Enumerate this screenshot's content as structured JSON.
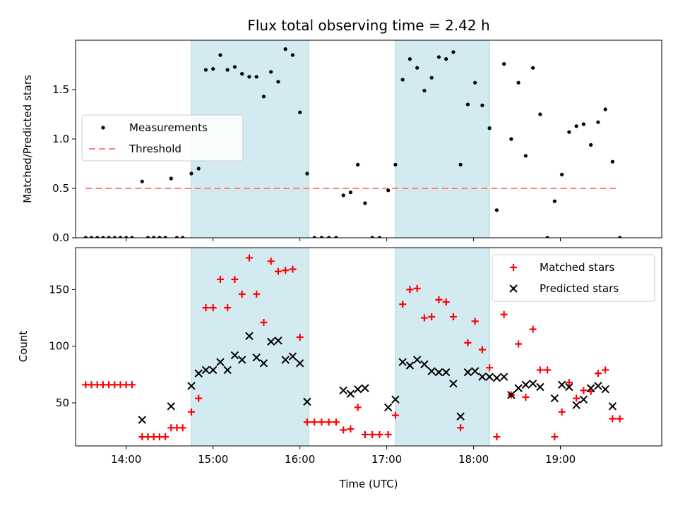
{
  "chart_data": [
    {
      "type": "scatter",
      "title": "Flux total observing time = 2.42 h",
      "xlabel": "",
      "ylabel": "Matched/Predicted stars",
      "xlim": [
        "13:25",
        "20:10"
      ],
      "ylim": [
        0,
        2.0
      ],
      "y_ticks": [
        "0.0",
        "0.5",
        "1.0",
        "1.5"
      ],
      "shaded_intervals": [
        [
          "14:45",
          "16:06"
        ],
        [
          "17:06",
          "18:11"
        ]
      ],
      "shade_color": "#d3eaf0",
      "legend_position": "center-left",
      "series": [
        {
          "name": "Measurements",
          "marker": "dot",
          "color": "#000000",
          "points": [
            [
              "13:32",
              0.0
            ],
            [
              "13:36",
              0.0
            ],
            [
              "13:40",
              0.0
            ],
            [
              "13:44",
              0.0
            ],
            [
              "13:48",
              0.0
            ],
            [
              "13:52",
              0.0
            ],
            [
              "13:56",
              0.0
            ],
            [
              "14:00",
              0.0
            ],
            [
              "14:04",
              0.0
            ],
            [
              "14:11",
              0.57
            ],
            [
              "14:15",
              0.0
            ],
            [
              "14:19",
              0.0
            ],
            [
              "14:23",
              0.0
            ],
            [
              "14:27",
              0.0
            ],
            [
              "14:31",
              0.6
            ],
            [
              "14:35",
              0.0
            ],
            [
              "14:39",
              0.0
            ],
            [
              "14:45",
              0.65
            ],
            [
              "14:50",
              0.7
            ],
            [
              "14:55",
              1.7
            ],
            [
              "15:00",
              1.71
            ],
            [
              "15:05",
              1.85
            ],
            [
              "15:10",
              1.7
            ],
            [
              "15:15",
              1.73
            ],
            [
              "15:20",
              1.66
            ],
            [
              "15:25",
              1.63
            ],
            [
              "15:30",
              1.63
            ],
            [
              "15:35",
              1.43
            ],
            [
              "15:40",
              1.68
            ],
            [
              "15:45",
              1.58
            ],
            [
              "15:50",
              1.91
            ],
            [
              "15:55",
              1.85
            ],
            [
              "16:00",
              1.27
            ],
            [
              "16:05",
              0.65
            ],
            [
              "16:10",
              0.0
            ],
            [
              "16:15",
              0.0
            ],
            [
              "16:20",
              0.0
            ],
            [
              "16:25",
              0.0
            ],
            [
              "16:30",
              0.43
            ],
            [
              "16:35",
              0.46
            ],
            [
              "16:40",
              0.74
            ],
            [
              "16:45",
              0.35
            ],
            [
              "16:50",
              0.0
            ],
            [
              "16:55",
              0.0
            ],
            [
              "17:01",
              0.48
            ],
            [
              "17:06",
              0.74
            ],
            [
              "17:11",
              1.6
            ],
            [
              "17:16",
              1.81
            ],
            [
              "17:21",
              1.72
            ],
            [
              "17:26",
              1.49
            ],
            [
              "17:31",
              1.62
            ],
            [
              "17:36",
              1.83
            ],
            [
              "17:41",
              1.81
            ],
            [
              "17:46",
              1.88
            ],
            [
              "17:51",
              0.74
            ],
            [
              "17:56",
              1.35
            ],
            [
              "18:01",
              1.57
            ],
            [
              "18:06",
              1.34
            ],
            [
              "18:11",
              1.11
            ],
            [
              "18:16",
              0.28
            ],
            [
              "18:21",
              1.76
            ],
            [
              "18:26",
              1.0
            ],
            [
              "18:31",
              1.57
            ],
            [
              "18:36",
              0.83
            ],
            [
              "18:41",
              1.72
            ],
            [
              "18:46",
              1.25
            ],
            [
              "18:51",
              0.0
            ],
            [
              "18:56",
              0.37
            ],
            [
              "19:01",
              0.64
            ],
            [
              "19:06",
              1.07
            ],
            [
              "19:11",
              1.13
            ],
            [
              "19:16",
              1.15
            ],
            [
              "19:21",
              0.94
            ],
            [
              "19:26",
              1.17
            ],
            [
              "19:31",
              1.3
            ],
            [
              "19:36",
              0.77
            ],
            [
              "19:41",
              0.0
            ]
          ]
        }
      ],
      "threshold": {
        "name": "Threshold",
        "value": 0.5,
        "from": "13:32",
        "to": "19:41",
        "color": "#ff7f7f",
        "style": "dashed"
      }
    },
    {
      "type": "scatter",
      "title": "",
      "xlabel": "Time (UTC)",
      "ylabel": "Count",
      "xlim": [
        "13:25",
        "20:10"
      ],
      "ylim": [
        12,
        187
      ],
      "x_ticks": [
        "14:00",
        "15:00",
        "16:00",
        "17:00",
        "18:00",
        "19:00"
      ],
      "y_ticks": [
        "50",
        "100",
        "150"
      ],
      "shaded_intervals": [
        [
          "14:45",
          "16:06"
        ],
        [
          "17:06",
          "18:11"
        ]
      ],
      "shade_color": "#d3eaf0",
      "legend_position": "top-right",
      "series": [
        {
          "name": "Matched stars",
          "marker": "plus",
          "color": "#ff0000",
          "points": [
            [
              "13:32",
              66
            ],
            [
              "13:36",
              66
            ],
            [
              "13:40",
              66
            ],
            [
              "13:44",
              66
            ],
            [
              "13:48",
              66
            ],
            [
              "13:52",
              66
            ],
            [
              "13:56",
              66
            ],
            [
              "14:00",
              66
            ],
            [
              "14:04",
              66
            ],
            [
              "14:11",
              20
            ],
            [
              "14:15",
              20
            ],
            [
              "14:19",
              20
            ],
            [
              "14:23",
              20
            ],
            [
              "14:27",
              20
            ],
            [
              "14:31",
              28
            ],
            [
              "14:35",
              28
            ],
            [
              "14:39",
              28
            ],
            [
              "14:45",
              42
            ],
            [
              "14:50",
              54
            ],
            [
              "14:55",
              134
            ],
            [
              "15:00",
              134
            ],
            [
              "15:05",
              159
            ],
            [
              "15:10",
              134
            ],
            [
              "15:15",
              159
            ],
            [
              "15:20",
              146
            ],
            [
              "15:25",
              178
            ],
            [
              "15:30",
              146
            ],
            [
              "15:35",
              121
            ],
            [
              "15:40",
              175
            ],
            [
              "15:45",
              166
            ],
            [
              "15:50",
              167
            ],
            [
              "15:55",
              168
            ],
            [
              "16:00",
              108
            ],
            [
              "16:05",
              33
            ],
            [
              "16:10",
              33
            ],
            [
              "16:15",
              33
            ],
            [
              "16:20",
              33
            ],
            [
              "16:25",
              33
            ],
            [
              "16:30",
              26
            ],
            [
              "16:35",
              27
            ],
            [
              "16:40",
              46
            ],
            [
              "16:45",
              22
            ],
            [
              "16:50",
              22
            ],
            [
              "16:55",
              22
            ],
            [
              "17:01",
              22
            ],
            [
              "17:06",
              39
            ],
            [
              "17:11",
              137
            ],
            [
              "17:16",
              150
            ],
            [
              "17:21",
              151
            ],
            [
              "17:26",
              125
            ],
            [
              "17:31",
              126
            ],
            [
              "17:36",
              141
            ],
            [
              "17:41",
              139
            ],
            [
              "17:46",
              126
            ],
            [
              "17:51",
              28
            ],
            [
              "17:56",
              103
            ],
            [
              "18:01",
              122
            ],
            [
              "18:06",
              97
            ],
            [
              "18:11",
              81
            ],
            [
              "18:16",
              20
            ],
            [
              "18:21",
              128
            ],
            [
              "18:26",
              57
            ],
            [
              "18:31",
              102
            ],
            [
              "18:36",
              55
            ],
            [
              "18:41",
              115
            ],
            [
              "18:46",
              79
            ],
            [
              "18:51",
              79
            ],
            [
              "18:56",
              20
            ],
            [
              "19:01",
              42
            ],
            [
              "19:06",
              68
            ],
            [
              "19:11",
              54
            ],
            [
              "19:16",
              61
            ],
            [
              "19:21",
              60
            ],
            [
              "19:26",
              76
            ],
            [
              "19:31",
              79
            ],
            [
              "19:36",
              36
            ],
            [
              "19:41",
              36
            ]
          ]
        },
        {
          "name": "Predicted stars",
          "marker": "x",
          "color": "#000000",
          "points": [
            [
              "14:11",
              35
            ],
            [
              "14:31",
              47
            ],
            [
              "14:45",
              65
            ],
            [
              "14:50",
              76
            ],
            [
              "14:55",
              79
            ],
            [
              "15:00",
              79
            ],
            [
              "15:05",
              86
            ],
            [
              "15:10",
              79
            ],
            [
              "15:15",
              92
            ],
            [
              "15:20",
              88
            ],
            [
              "15:25",
              109
            ],
            [
              "15:30",
              90
            ],
            [
              "15:35",
              85
            ],
            [
              "15:40",
              104
            ],
            [
              "15:45",
              105
            ],
            [
              "15:50",
              88
            ],
            [
              "15:55",
              91
            ],
            [
              "16:00",
              85
            ],
            [
              "16:05",
              51
            ],
            [
              "16:30",
              61
            ],
            [
              "16:35",
              58
            ],
            [
              "16:40",
              62
            ],
            [
              "16:45",
              63
            ],
            [
              "17:01",
              46
            ],
            [
              "17:06",
              53
            ],
            [
              "17:11",
              86
            ],
            [
              "17:16",
              83
            ],
            [
              "17:21",
              88
            ],
            [
              "17:26",
              84
            ],
            [
              "17:31",
              78
            ],
            [
              "17:36",
              77
            ],
            [
              "17:41",
              77
            ],
            [
              "17:46",
              67
            ],
            [
              "17:51",
              38
            ],
            [
              "17:56",
              77
            ],
            [
              "18:01",
              78
            ],
            [
              "18:06",
              73
            ],
            [
              "18:11",
              73
            ],
            [
              "18:16",
              72
            ],
            [
              "18:21",
              73
            ],
            [
              "18:26",
              57
            ],
            [
              "18:31",
              63
            ],
            [
              "18:36",
              66
            ],
            [
              "18:41",
              67
            ],
            [
              "18:46",
              64
            ],
            [
              "18:56",
              54
            ],
            [
              "19:01",
              66
            ],
            [
              "19:06",
              64
            ],
            [
              "19:11",
              48
            ],
            [
              "19:16",
              53
            ],
            [
              "19:21",
              63
            ],
            [
              "19:26",
              65
            ],
            [
              "19:31",
              62
            ],
            [
              "19:36",
              47
            ]
          ]
        }
      ]
    }
  ]
}
